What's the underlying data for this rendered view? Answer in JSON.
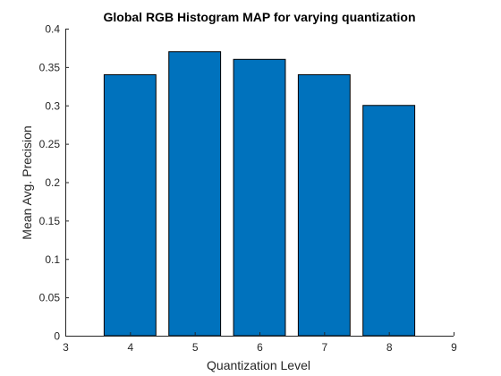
{
  "chart_data": {
    "type": "bar",
    "title": "Global RGB Histogram MAP for varying quantization",
    "xlabel": "Quantization Level",
    "ylabel": "Mean Avg. Precision",
    "categories": [
      4,
      5,
      6,
      7,
      8
    ],
    "values": [
      0.34,
      0.37,
      0.36,
      0.34,
      0.3
    ],
    "xlim": [
      3,
      9
    ],
    "ylim": [
      0,
      0.4
    ],
    "xticks": [
      "3",
      "4",
      "5",
      "6",
      "7",
      "8",
      "9"
    ],
    "yticks": [
      "0",
      "0.05",
      "0.1",
      "0.15",
      "0.2",
      "0.25",
      "0.3",
      "0.35",
      "0.4"
    ],
    "bar_color": "#0072BD",
    "grid": false,
    "legend": "none"
  }
}
